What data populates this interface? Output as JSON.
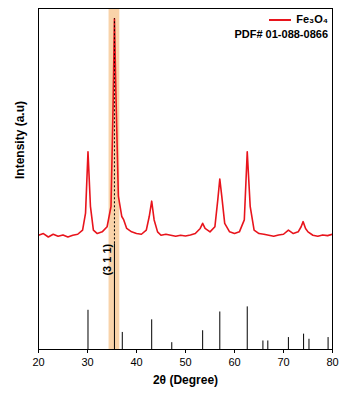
{
  "chart_data": {
    "type": "line",
    "xlabel": "2θ (Degree)",
    "ylabel": "Intensity (a.u)",
    "xlim": [
      20,
      80
    ],
    "xticks": [
      20,
      30,
      40,
      50,
      60,
      70,
      80
    ],
    "ylim": [
      0,
      100
    ],
    "yticks": [],
    "tick_labels": "x",
    "legend": "upper right",
    "highlight_range": [
      34.4,
      36.6
    ],
    "annotations": [
      {
        "text": "(3 1 1)",
        "x": 35.5
      }
    ],
    "series": [
      {
        "name": "Fe₃O₄",
        "type": "line",
        "color": "#e8141c",
        "x": [
          20,
          21,
          22,
          23,
          24,
          25,
          26,
          27,
          28,
          29,
          29.6,
          30.1,
          30.6,
          31.2,
          32,
          33,
          34,
          34.8,
          35.2,
          35.5,
          35.8,
          36.3,
          37,
          37.4,
          38,
          39,
          40,
          41,
          42,
          42.6,
          43.1,
          43.6,
          44.3,
          45,
          46,
          47,
          48,
          49,
          50,
          51,
          52,
          53,
          53.5,
          54,
          55,
          56,
          56.6,
          57.0,
          57.4,
          58,
          59,
          60,
          61,
          62,
          62.6,
          63.2,
          64,
          65,
          66,
          67,
          68,
          69,
          70,
          71,
          72,
          73,
          73.6,
          74.0,
          74.5,
          75,
          76,
          77,
          78,
          79,
          80
        ],
        "values": [
          33.5,
          34,
          33,
          33.8,
          33.2,
          33.6,
          33,
          33.5,
          33.8,
          35,
          40,
          58,
          42,
          35,
          34,
          34.5,
          36,
          42,
          70,
          97,
          75,
          45,
          39,
          38,
          35.5,
          34.5,
          34,
          33.8,
          35,
          39,
          43.5,
          38,
          34.5,
          33.5,
          33.8,
          33.5,
          33.2,
          33.5,
          33.3,
          33.6,
          34,
          35.5,
          37,
          35.5,
          34.5,
          36,
          44,
          50,
          45,
          37,
          34.5,
          34,
          34.5,
          38,
          58,
          42,
          35,
          34,
          33.8,
          33.5,
          33.2,
          33.6,
          33.8,
          35,
          34,
          34.5,
          36,
          37.5,
          35.5,
          34.5,
          33.5,
          33.2,
          33.6,
          33.4,
          33.8
        ]
      },
      {
        "name": "PDF# 01-088-0866",
        "type": "bar",
        "color": "#000000",
        "x": [
          30.1,
          35.5,
          37.1,
          43.1,
          47.2,
          53.5,
          57.0,
          62.6,
          65.8,
          66.8,
          71.0,
          74.1,
          75.2,
          79.1
        ],
        "values": [
          11.5,
          31,
          5,
          8.7,
          2,
          5.5,
          11,
          12.5,
          2.5,
          2.5,
          3.5,
          4.5,
          3,
          3.5
        ]
      }
    ]
  }
}
